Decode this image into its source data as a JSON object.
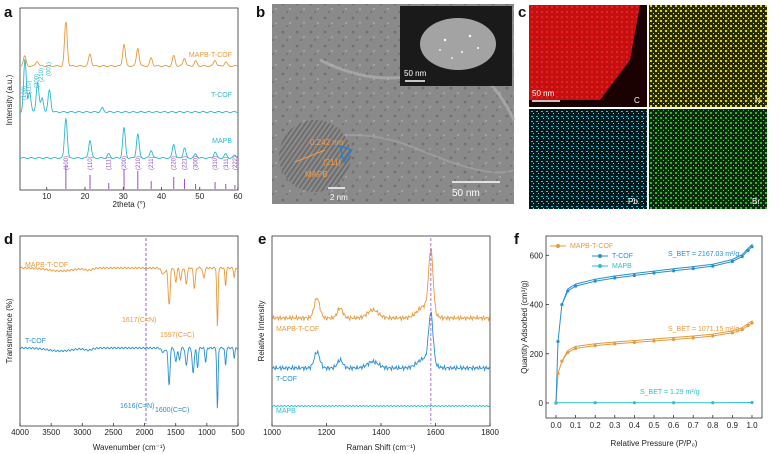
{
  "panels": {
    "a": {
      "letter": "a",
      "xlabel": "2theta (°)",
      "ylabel": "Intensity (a.u.)",
      "xticks": [
        "10",
        "20",
        "30",
        "40",
        "50",
        "60"
      ],
      "traces": [
        "MAPB-T-COF",
        "T-COF",
        "MAPB"
      ],
      "tcof_hkl": [
        "(100)",
        "(110)",
        "(200)",
        "(210)",
        "(001)"
      ],
      "mapb_hkl": [
        "(100)",
        "(110)",
        "(111)",
        "(200)",
        "(210)",
        "(211)",
        "(220)",
        "(221)",
        "(300)",
        "(310)",
        "(311)",
        "(222)"
      ]
    },
    "b": {
      "letter": "b",
      "inset_scale": "50 nm",
      "hr_scale": "2 nm",
      "main_scale": "50 nm",
      "d_spacing": "0.242 nm",
      "plane": "(211)",
      "phase": "MAPB"
    },
    "c": {
      "letter": "c",
      "scale": "50 nm",
      "maps": [
        {
          "element": "C",
          "color": "#e41616"
        },
        {
          "element": "N",
          "color": "#e6e600"
        },
        {
          "element": "Pb",
          "color": "#22c8d8"
        },
        {
          "element": "Br",
          "color": "#2fb52f"
        }
      ]
    },
    "d": {
      "letter": "d",
      "xlabel": "Wavenumber (cm⁻¹)",
      "ylabel": "Transmittance (%)",
      "xticks": [
        "4000",
        "3500",
        "3000",
        "2500",
        "2000",
        "1500",
        "1000",
        "500"
      ],
      "traces": [
        "MAPB-T-COF",
        "T-COF"
      ],
      "annotations": [
        "1617(C=N)",
        "1597(C=C)",
        "1616(C=N)",
        "1600(C=C)"
      ]
    },
    "e": {
      "letter": "e",
      "xlabel": "Raman Shift (cm⁻¹)",
      "ylabel": "Relative Intensity",
      "xticks": [
        "1000",
        "1200",
        "1400",
        "1600",
        "1800"
      ],
      "traces": [
        "MAPB-T-COF",
        "T-COF",
        "MAPB"
      ]
    },
    "f": {
      "letter": "f",
      "xlabel": "Relative Pressure (P/P₀)",
      "ylabel": "Quantity Adsorbed (cm³/g)",
      "xticks": [
        "0.0",
        "0.1",
        "0.2",
        "0.3",
        "0.4",
        "0.5",
        "0.6",
        "0.7",
        "0.8",
        "0.9",
        "1.0"
      ],
      "yticks": [
        "0",
        "200",
        "400",
        "600"
      ],
      "legend": [
        "MAPB-T-COF",
        "T-COF",
        "MAPB"
      ],
      "bet_labels": [
        "S_BET = 2167.03 m²/g",
        "S_BET = 1071.15 m²/g",
        "S_BET = 1.29 m²/g"
      ]
    }
  },
  "chart_data": [
    {
      "type": "line",
      "panel": "a",
      "xlabel": "2theta (°)",
      "ylabel": "Intensity (a.u.)",
      "xlim": [
        3,
        60
      ],
      "series": [
        {
          "name": "MAPB-T-COF",
          "color": "#e69a3c",
          "peaks": [
            4.2,
            7.5,
            15.0,
            21.3,
            30.2,
            33.8,
            37.3,
            43.2,
            46.0,
            48.9,
            54.0,
            56.8
          ]
        },
        {
          "name": "T-COF",
          "color": "#2cb6d0",
          "peaks": [
            4.3,
            5.5,
            7.6,
            8.8,
            10.7,
            24.5
          ]
        },
        {
          "name": "MAPB",
          "color": "#2cb6d0",
          "peaks": [
            15.0,
            21.3,
            26.2,
            30.2,
            33.8,
            37.3,
            43.2,
            46.0,
            48.9,
            54.0,
            56.8,
            59.2
          ]
        }
      ]
    },
    {
      "type": "line",
      "panel": "d",
      "xlabel": "Wavenumber (cm⁻¹)",
      "ylabel": "Transmittance (%)",
      "xlim": [
        4000,
        500
      ],
      "series": [
        {
          "name": "MAPB-T-COF",
          "color": "#e69a3c",
          "key_bands": [
            1617,
            1597
          ]
        },
        {
          "name": "T-COF",
          "color": "#2a8fd0",
          "key_bands": [
            1616,
            1600
          ]
        }
      ]
    },
    {
      "type": "line",
      "panel": "e",
      "xlabel": "Raman Shift (cm⁻¹)",
      "ylabel": "Relative Intensity",
      "xlim": [
        1000,
        1800
      ],
      "series": [
        {
          "name": "MAPB-T-COF",
          "color": "#e69a3c",
          "peaks": [
            1165,
            1250,
            1370,
            1583
          ]
        },
        {
          "name": "T-COF",
          "color": "#2a8fd0",
          "peaks": [
            1165,
            1250,
            1370,
            1583
          ]
        },
        {
          "name": "MAPB",
          "color": "#2cc0c8",
          "peaks": []
        }
      ],
      "reference_line_x": 1583
    },
    {
      "type": "line",
      "panel": "f",
      "xlabel": "Relative Pressure (P/P₀)",
      "ylabel": "Quantity Adsorbed (cm³/g)",
      "xlim": [
        0,
        1.0
      ],
      "ylim": [
        0,
        650
      ],
      "series": [
        {
          "name": "MAPB-T-COF",
          "color": "#e69a3c",
          "x": [
            0.0,
            0.01,
            0.03,
            0.06,
            0.1,
            0.2,
            0.3,
            0.4,
            0.5,
            0.6,
            0.7,
            0.8,
            0.9,
            0.95,
            0.98,
            1.0
          ],
          "y": [
            0,
            120,
            170,
            205,
            222,
            233,
            240,
            246,
            252,
            258,
            264,
            272,
            285,
            298,
            315,
            325
          ]
        },
        {
          "name": "T-COF",
          "color": "#2a8fd0",
          "x": [
            0.0,
            0.01,
            0.03,
            0.06,
            0.1,
            0.2,
            0.3,
            0.4,
            0.5,
            0.6,
            0.7,
            0.8,
            0.9,
            0.95,
            0.98,
            1.0
          ],
          "y": [
            0,
            250,
            400,
            455,
            475,
            495,
            508,
            518,
            528,
            537,
            546,
            556,
            575,
            595,
            620,
            635
          ]
        },
        {
          "name": "MAPB",
          "color": "#2cc0c8",
          "x": [
            0.0,
            0.2,
            0.4,
            0.6,
            0.8,
            1.0
          ],
          "y": [
            1,
            1,
            1,
            1,
            1,
            2
          ]
        }
      ]
    }
  ]
}
